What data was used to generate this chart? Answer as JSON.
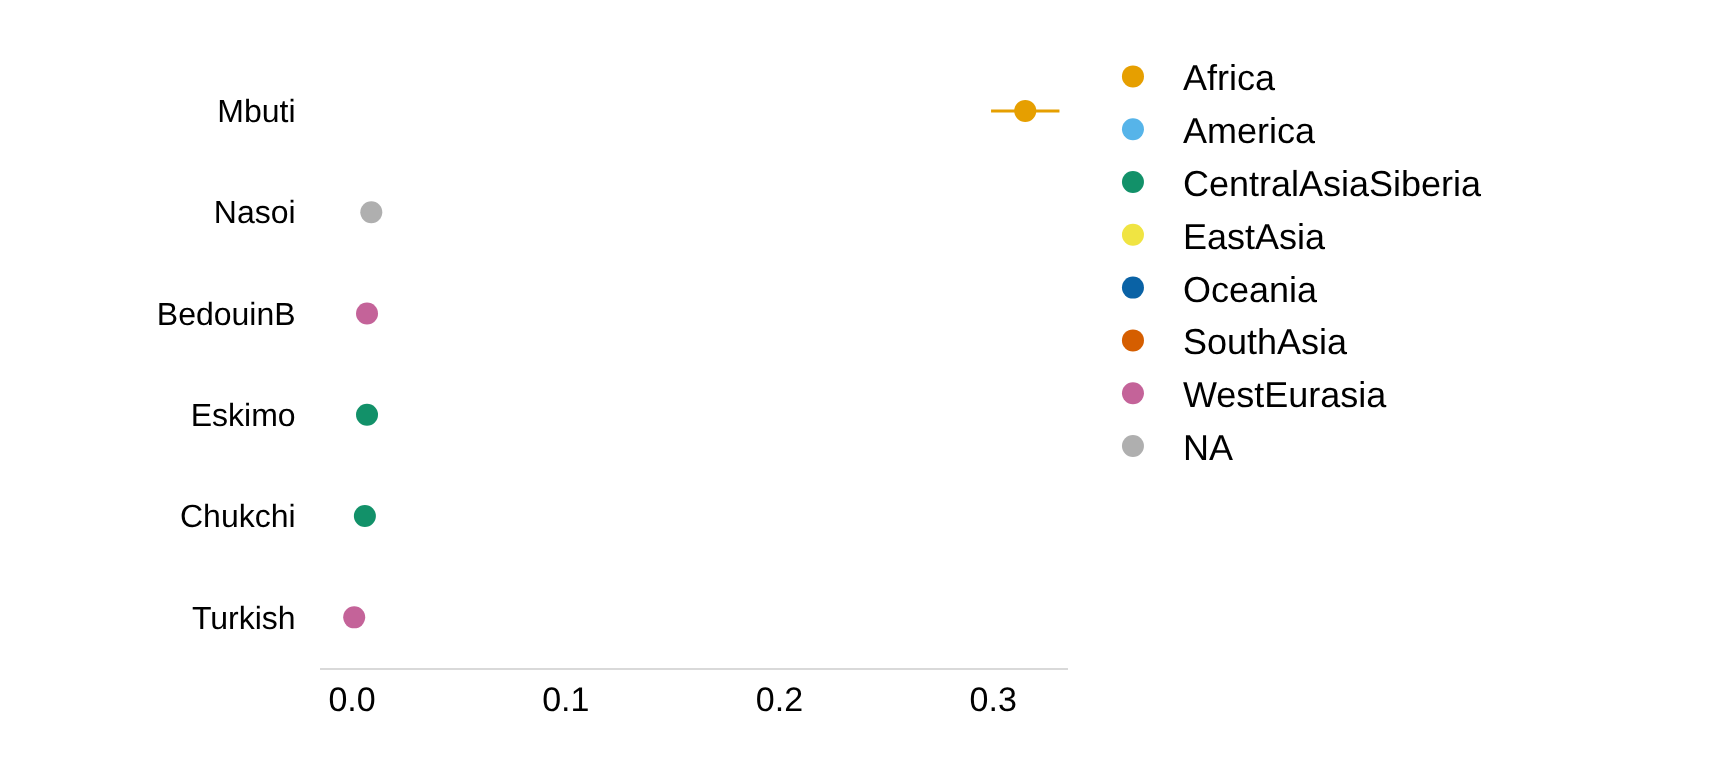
{
  "chart_data": {
    "type": "scatter",
    "orientation": "horizontal",
    "categories": [
      "Mbuti",
      "Nasoi",
      "BedouinB",
      "Eskimo",
      "Chukchi",
      "Turkish"
    ],
    "series": [
      {
        "name": "Africa",
        "color": "#e69f00",
        "values": [
          0.315,
          null,
          null,
          null,
          null,
          null
        ],
        "errors": [
          0.016,
          null,
          null,
          null,
          null,
          null
        ]
      },
      {
        "name": "America",
        "color": "#56b4e9",
        "values": [
          null,
          null,
          null,
          null,
          null,
          null
        ]
      },
      {
        "name": "CentralAsiaSiberia",
        "color": "#129169",
        "values": [
          null,
          null,
          null,
          0.007,
          0.006,
          null
        ]
      },
      {
        "name": "EastAsia",
        "color": "#f0e442",
        "values": [
          null,
          null,
          null,
          null,
          null,
          null
        ]
      },
      {
        "name": "Oceania",
        "color": "#0a62a5",
        "values": [
          null,
          null,
          null,
          null,
          null,
          null
        ]
      },
      {
        "name": "SouthAsia",
        "color": "#d55e00",
        "values": [
          null,
          null,
          null,
          null,
          null,
          null
        ]
      },
      {
        "name": "WestEurasia",
        "color": "#c46399",
        "values": [
          null,
          null,
          0.007,
          null,
          null,
          0.001
        ]
      },
      {
        "name": "NA",
        "color": "#afafaf",
        "values": [
          null,
          0.009,
          null,
          null,
          null,
          null
        ]
      }
    ],
    "xlim": [
      -0.015,
      0.335
    ],
    "xticks": [
      {
        "value": 0,
        "label": "0.0"
      },
      0.1,
      0.2,
      0.3
    ],
    "legend": "right",
    "marker": "circle"
  }
}
